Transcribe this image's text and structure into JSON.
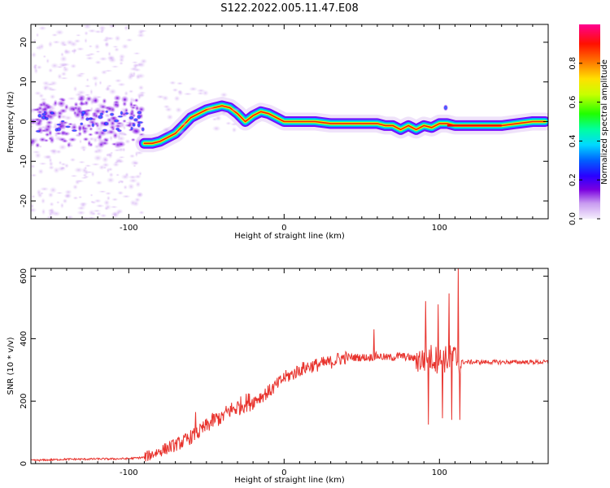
{
  "figure": {
    "title": "S122.2022.005.11.47.E08"
  },
  "chart_data": [
    {
      "type": "heatmap",
      "xlabel": "Height of straight line (km)",
      "ylabel": "Frequency (Hz)",
      "xlim": [
        -163,
        170
      ],
      "ylim": [
        -24.5,
        24.5
      ],
      "xticks": [
        -100,
        0,
        100
      ],
      "yticks": [
        -20,
        -10,
        0,
        10,
        20
      ],
      "grid": false,
      "ridge": {
        "x": [
          -90,
          -85,
          -80,
          -75,
          -70,
          -65,
          -60,
          -55,
          -50,
          -45,
          -40,
          -35,
          -30,
          -25,
          -20,
          -15,
          -10,
          -5,
          0,
          10,
          20,
          30,
          40,
          50,
          60,
          65,
          70,
          75,
          80,
          85,
          90,
          95,
          100,
          105,
          110,
          120,
          130,
          140,
          150,
          160,
          168
        ],
        "y": [
          -5.5,
          -5.5,
          -5,
          -4,
          -3,
          -1,
          1,
          2,
          3,
          3.5,
          4,
          3.5,
          2,
          0,
          1.5,
          2.5,
          2,
          1,
          0,
          0,
          0,
          -0.5,
          -0.5,
          -0.5,
          -0.5,
          -1,
          -1,
          -2,
          -1,
          -2,
          -1,
          -1.5,
          -0.5,
          -0.5,
          -1,
          -1,
          -1,
          -1,
          -0.5,
          0,
          0
        ]
      },
      "colorbar": {
        "label": "Normalized spectral amplitude",
        "range": [
          0,
          1
        ],
        "ticks": [
          0.0,
          0.2,
          0.4,
          0.6,
          0.8
        ],
        "tick_labels": [
          "0.0",
          "0.2",
          "0.4",
          "0.6",
          "0.8"
        ],
        "colormap": [
          "#e8d6f8",
          "#8a2be2",
          "#2a00ff",
          "#00a0ff",
          "#00e8ff",
          "#00ff60",
          "#b0ff00",
          "#ffff00",
          "#ff8000",
          "#ff0000",
          "#ff0080"
        ]
      }
    },
    {
      "type": "line",
      "xlabel": "Height of straight line (km)",
      "ylabel": "SNR (10 * v/v)",
      "xlim": [
        -163,
        170
      ],
      "ylim": [
        0,
        625
      ],
      "xticks": [
        -100,
        0,
        100
      ],
      "yticks": [
        0,
        200,
        400,
        600
      ],
      "grid": false,
      "color": "#e8332d",
      "series": [
        {
          "x": [
            -163,
            -150,
            -140,
            -130,
            -120,
            -110,
            -100,
            -90,
            -85,
            -80,
            -75,
            -70,
            -65,
            -60,
            -55,
            -50,
            -45,
            -40,
            -35,
            -30,
            -25,
            -20,
            -15,
            -10,
            -5,
            0,
            5,
            10,
            15,
            20,
            25,
            30,
            35,
            40,
            45,
            50,
            55,
            60,
            65,
            70,
            75,
            80,
            85,
            90,
            95,
            100,
            105,
            110,
            112,
            115,
            120,
            130,
            140,
            150,
            160,
            170
          ],
          "y": [
            10,
            12,
            14,
            14,
            15,
            15,
            16,
            20,
            30,
            40,
            50,
            60,
            70,
            85,
            100,
            120,
            140,
            150,
            170,
            180,
            195,
            200,
            215,
            230,
            250,
            275,
            285,
            300,
            310,
            315,
            320,
            325,
            335,
            340,
            340,
            340,
            340,
            345,
            340,
            340,
            345,
            340,
            335,
            330,
            340,
            330,
            335,
            340,
            330,
            325,
            325,
            325,
            325,
            325,
            325,
            325
          ]
        }
      ],
      "spikes": [
        {
          "x": -57,
          "y": 165
        },
        {
          "x": -40,
          "y": 165
        },
        {
          "x": 58,
          "y": 430
        },
        {
          "x": 91,
          "y": 520
        },
        {
          "x": 93,
          "y": 125
        },
        {
          "x": 99,
          "y": 510
        },
        {
          "x": 102,
          "y": 145
        },
        {
          "x": 106,
          "y": 545
        },
        {
          "x": 108,
          "y": 140
        },
        {
          "x": 112,
          "y": 625
        },
        {
          "x": 113,
          "y": 140
        }
      ]
    }
  ]
}
